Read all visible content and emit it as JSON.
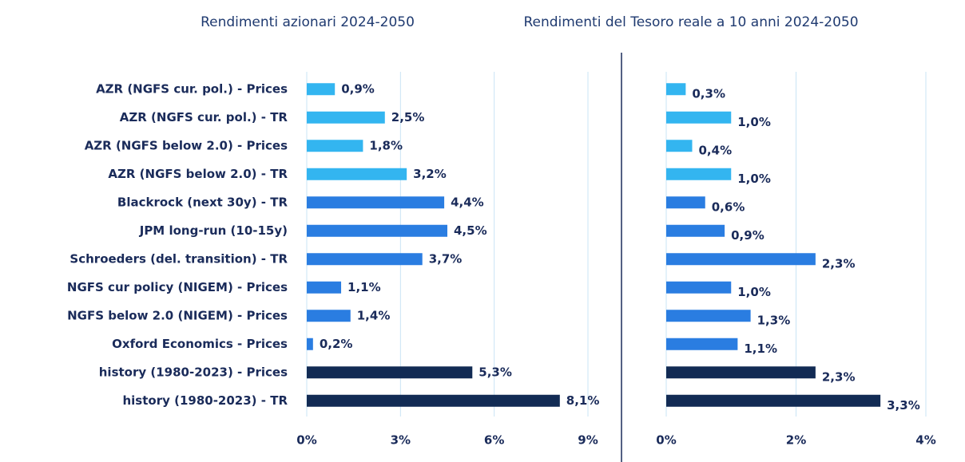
{
  "chart_data": [
    {
      "type": "bar",
      "orientation": "horizontal",
      "title": "Rendimenti azionari 2024-2050",
      "categories": [
        "AZR (NGFS cur. pol.) - Prices",
        "AZR (NGFS cur. pol.) - TR",
        "AZR (NGFS below 2.0) - Prices",
        "AZR (NGFS below 2.0) - TR",
        "Blackrock (next 30y) - TR",
        "JPM long-run (10-15y)",
        "Schroeders (del. transition) - TR",
        "NGFS cur policy (NIGEM) - Prices",
        "NGFS below 2.0 (NIGEM) - Prices",
        "Oxford Economics - Prices",
        "history (1980-2023) - Prices",
        "history (1980-2023) - TR"
      ],
      "values": [
        0.9,
        2.5,
        1.8,
        3.2,
        4.4,
        4.5,
        3.7,
        1.1,
        1.4,
        0.2,
        5.3,
        8.1
      ],
      "value_labels": [
        "0,9%",
        "2,5%",
        "1,8%",
        "3,2%",
        "4,4%",
        "4,5%",
        "3,7%",
        "1,1%",
        "1,4%",
        "0,2%",
        "5,3%",
        "8,1%"
      ],
      "colors": [
        "#33b5f0",
        "#33b5f0",
        "#33b5f0",
        "#33b5f0",
        "#2a7de1",
        "#2a7de1",
        "#2a7de1",
        "#2a7de1",
        "#2a7de1",
        "#2a7de1",
        "#122b54",
        "#122b54"
      ],
      "xlim": [
        0,
        9
      ],
      "xticks": [
        {
          "value": 0,
          "label": "0%"
        },
        {
          "value": 3,
          "label": "3%"
        },
        {
          "value": 6,
          "label": "6%"
        },
        {
          "value": 9,
          "label": "9%"
        }
      ],
      "grid": true
    },
    {
      "type": "bar",
      "orientation": "horizontal",
      "title": "Rendimenti del Tesoro reale a 10 anni 2024-2050",
      "values": [
        0.3,
        1.0,
        0.4,
        1.0,
        0.6,
        0.9,
        2.3,
        1.0,
        1.3,
        1.1,
        2.3,
        3.3
      ],
      "value_labels": [
        "0,3%",
        "1,0%",
        "0,4%",
        "1,0%",
        "0,6%",
        "0,9%",
        "2,3%",
        "1,0%",
        "1,3%",
        "1,1%",
        "2,3%",
        "3,3%"
      ],
      "colors": [
        "#33b5f0",
        "#33b5f0",
        "#33b5f0",
        "#33b5f0",
        "#2a7de1",
        "#2a7de1",
        "#2a7de1",
        "#2a7de1",
        "#2a7de1",
        "#2a7de1",
        "#122b54",
        "#122b54"
      ],
      "xlim": [
        0,
        4
      ],
      "xticks": [
        {
          "value": 0,
          "label": "0%"
        },
        {
          "value": 2,
          "label": "2%"
        },
        {
          "value": 4,
          "label": "4%"
        }
      ],
      "grid": true
    }
  ]
}
